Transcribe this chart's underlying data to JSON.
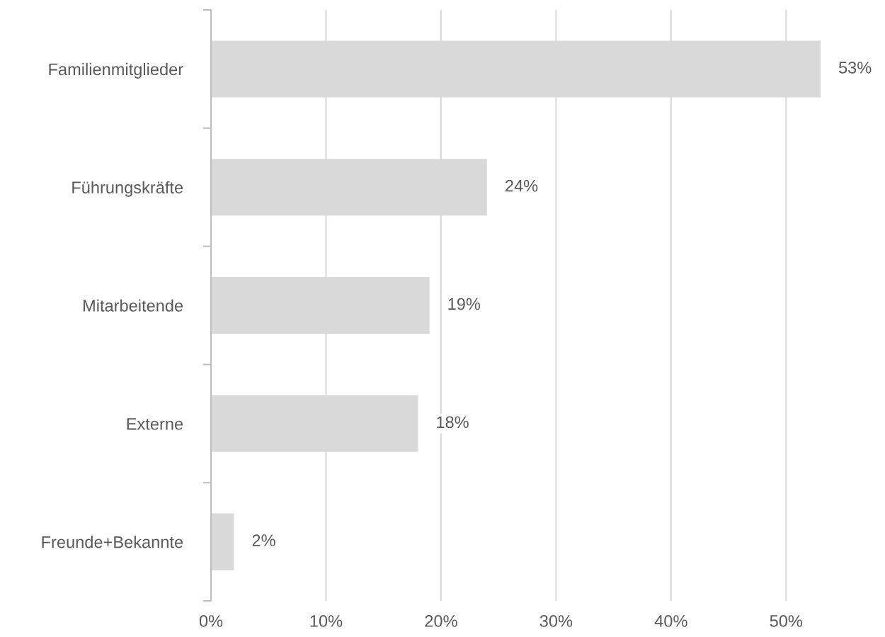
{
  "chart_data": {
    "type": "bar",
    "orientation": "horizontal",
    "categories": [
      "Familienmitglieder",
      "Führungskräfte",
      "Mitarbeitende",
      "Externe",
      "Freunde+Bekannte"
    ],
    "values": [
      53,
      24,
      19,
      18,
      2
    ],
    "color": "#d9d9d9",
    "xticks": [
      {
        "value": 0,
        "label": "0%"
      },
      {
        "value": 10,
        "label": "10%"
      },
      {
        "value": 20,
        "label": "20%"
      },
      {
        "value": 30,
        "label": "30%"
      },
      {
        "value": 40,
        "label": "40%"
      },
      {
        "value": 50,
        "label": "50%"
      }
    ],
    "xlim": [
      0,
      53
    ],
    "value_labels": [
      "53%",
      "24%",
      "19%",
      "18%",
      "2%"
    ],
    "grid": "x"
  }
}
